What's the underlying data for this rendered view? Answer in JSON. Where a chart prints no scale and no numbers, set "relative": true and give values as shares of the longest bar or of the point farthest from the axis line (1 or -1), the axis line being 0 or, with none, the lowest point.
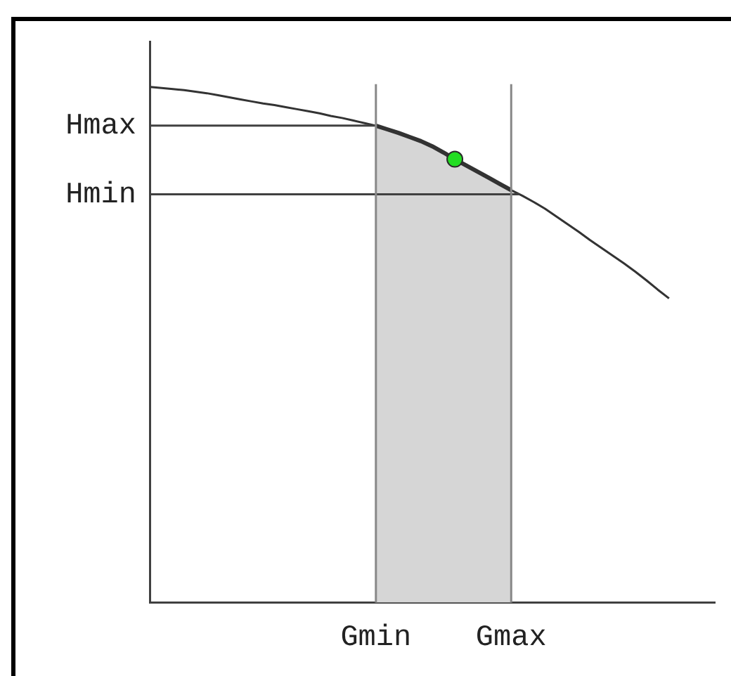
{
  "chart_data": {
    "type": "line",
    "relative": true,
    "marker": "none",
    "categories": [
      null,
      null,
      null,
      null,
      null,
      null,
      null,
      null,
      null,
      null,
      null,
      null,
      null,
      null,
      null,
      null,
      null,
      null,
      null,
      null,
      "Gmin",
      null,
      null,
      null,
      null,
      null,
      null,
      null,
      null,
      null,
      null,
      null,
      "Gmax",
      null,
      null,
      null,
      null,
      null,
      null,
      null,
      null,
      null,
      null,
      null,
      null,
      null,
      null,
      null,
      null,
      null,
      null
    ],
    "series": [
      {
        "color": "#333333",
        "values": [
          1,
          0.998,
          0.996,
          0.994,
          0.991,
          0.988,
          0.984,
          0.98,
          0.976,
          0.972,
          0.968,
          0.965,
          0.961,
          0.957,
          0.953,
          0.949,
          0.944,
          0.94,
          0.935,
          0.93,
          0.925,
          0.918,
          0.911,
          0.903,
          0.895,
          0.885,
          0.873,
          0.86,
          0.848,
          0.836,
          0.824,
          0.812,
          0.8,
          0.789,
          0.777,
          0.764,
          0.749,
          0.734,
          0.719,
          0.703,
          0.688,
          0.673,
          0.658,
          0.642,
          0.625,
          0.607,
          0.59,
          null,
          null,
          null,
          null
        ]
      },
      {
        "type": "area",
        "color": "#d6d6d6",
        "values": [
          null,
          null,
          null,
          null,
          null,
          null,
          null,
          null,
          null,
          null,
          null,
          null,
          null,
          null,
          null,
          null,
          null,
          null,
          null,
          null,
          0.925,
          0.918,
          0.911,
          0.903,
          0.895,
          0.885,
          0.873,
          0.86,
          0.848,
          0.836,
          0.824,
          0.812,
          0.8,
          null,
          null,
          null,
          null,
          null,
          null,
          null,
          null,
          null,
          null,
          null,
          null,
          null,
          null,
          null,
          null,
          null,
          null
        ]
      },
      {
        "type": "scatter",
        "color": "#22dd22",
        "marker": "circle",
        "values": [
          null,
          null,
          null,
          null,
          null,
          null,
          null,
          null,
          null,
          null,
          null,
          null,
          null,
          null,
          null,
          null,
          null,
          null,
          null,
          null,
          null,
          null,
          null,
          null,
          null,
          null,
          null,
          0.86,
          null,
          null,
          null,
          null,
          null,
          null,
          null,
          null,
          null,
          null,
          null,
          null,
          null,
          null,
          null,
          null,
          null,
          null,
          null,
          null,
          null,
          null,
          null
        ]
      }
    ],
    "ref_lines": [
      {
        "axis": "y",
        "value": 0.925,
        "label": "Hmax",
        "color": "#404040"
      },
      {
        "axis": "y",
        "value": 0.792,
        "label": "Hmin",
        "color": "#404040"
      },
      {
        "axis": "x",
        "value": "Gmin",
        "color": "#888888"
      },
      {
        "axis": "x",
        "value": "Gmax",
        "color": "#888888"
      }
    ]
  }
}
